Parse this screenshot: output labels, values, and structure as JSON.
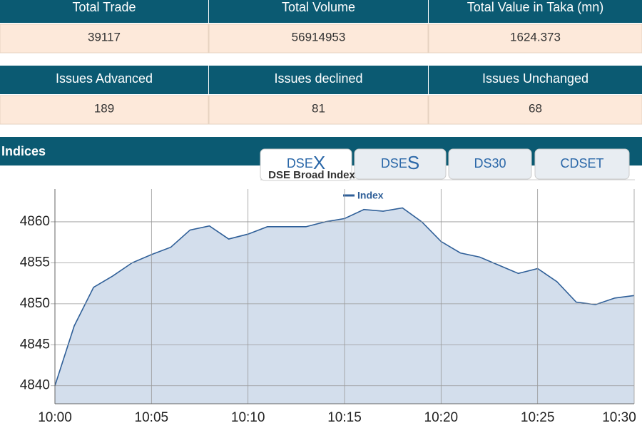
{
  "stats_tables": [
    {
      "headers": [
        "Total Trade",
        "Total Volume",
        "Total Value in Taka (mn)"
      ],
      "values": [
        "39117",
        "56914953",
        "1624.373"
      ]
    },
    {
      "headers": [
        "Issues Advanced",
        "Issues declined",
        "Issues Unchanged"
      ],
      "values": [
        "189",
        "81",
        "68"
      ]
    }
  ],
  "section_title": "Indices",
  "tabs": [
    [
      "DSE",
      "X"
    ],
    [
      "DSE",
      "S"
    ],
    [
      "DS30"
    ],
    [
      "CDSET"
    ]
  ],
  "chart_data": {
    "type": "line",
    "title": "DSE Broad Index",
    "categories": [
      "10:00",
      null,
      null,
      null,
      null,
      "10:05",
      null,
      null,
      null,
      null,
      "10:10",
      null,
      null,
      null,
      null,
      "10:15",
      null,
      null,
      null,
      null,
      "10:20",
      null,
      null,
      null,
      null,
      "10:25",
      null,
      null,
      null,
      null,
      "10:30"
    ],
    "series": [
      {
        "name": "Index",
        "color": "#2f5f98",
        "fill": "#d3deec",
        "values": [
          4840,
          4847.3,
          4852.0,
          4853.4,
          4855.0,
          4856.0,
          4856.9,
          4859.0,
          4859.5,
          4857.9,
          4858.5,
          4859.4,
          4859.4,
          4859.4,
          4860.0,
          4860.4,
          4861.5,
          4861.3,
          4861.7,
          4860.0,
          4857.6,
          4856.2,
          4855.7,
          4854.7,
          4853.7,
          4854.3,
          4852.7,
          4850.2,
          4849.9,
          4850.7,
          4851.0
        ]
      }
    ],
    "ylim": [
      4837.8,
      4864
    ],
    "yticks": [
      4840,
      4845,
      4850,
      4855,
      4860
    ],
    "grid": true,
    "legend": "top"
  }
}
